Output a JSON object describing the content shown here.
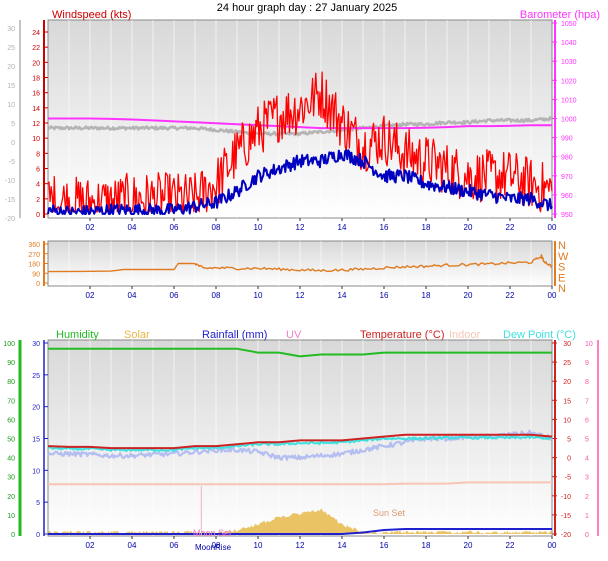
{
  "title": "24 hour graph day : 27 January 2025",
  "x_ticks": [
    "02",
    "04",
    "06",
    "08",
    "10",
    "12",
    "14",
    "16",
    "18",
    "20",
    "22",
    "00"
  ],
  "colors": {
    "wind_avg": "#0000c0",
    "wind_gust": "#ff0000",
    "wind_axis": "#cc0000",
    "barometer": "#ff33ff",
    "grey_trace": "#b4b4b4",
    "direction": "#e07b20",
    "humidity": "#22bb22",
    "solar": "#e6b84a",
    "rainfall": "#2020d0",
    "uv": "#f080c8",
    "temperature": "#cc2222",
    "indoor": "#f5c5b5",
    "dewpoint": "#40e0e0",
    "grey_left_axis": "#b0b0b0",
    "green_axis": "#1a9a1a",
    "pink_axis": "#ff55aa"
  },
  "chart_data": [
    {
      "type": "line",
      "panel": "wind-barometer",
      "left_axis_label": "Windspeed (kts)",
      "right_axis_label": "Barometer (hpa)",
      "left_ticks_wind": [
        "24",
        "22",
        "20",
        "18",
        "16",
        "14",
        "12",
        "10",
        "8",
        "6",
        "4",
        "2",
        "0"
      ],
      "left_ticks_grey": [
        "30",
        "25",
        "20",
        "15",
        "10",
        "5",
        "0",
        "-5",
        "-10",
        "-15",
        "-20"
      ],
      "right_ticks": [
        "1050",
        "1040",
        "1030",
        "1020",
        "1010",
        "1000",
        "990",
        "980",
        "970",
        "960",
        "950"
      ],
      "ylim_wind": [
        0,
        25
      ],
      "ylim_baro": [
        945,
        1050
      ],
      "x": [
        0,
        1,
        2,
        3,
        4,
        5,
        6,
        7,
        8,
        9,
        10,
        11,
        12,
        13,
        14,
        15,
        16,
        17,
        18,
        19,
        20,
        21,
        22,
        23,
        24
      ],
      "series": [
        {
          "name": "Windspeed gust",
          "values": [
            2,
            1.5,
            1.5,
            1.5,
            2,
            2,
            2,
            2,
            4,
            8,
            11,
            13,
            14,
            16,
            12,
            9,
            10,
            8,
            7,
            6,
            5,
            5,
            5,
            4,
            3
          ]
        },
        {
          "name": "Windspeed",
          "values": [
            0.5,
            0.2,
            0.3,
            0.5,
            0.5,
            0.5,
            0.5,
            1,
            1.5,
            3,
            5,
            6,
            7,
            7,
            8,
            7,
            5,
            5,
            4,
            3.5,
            3,
            2.5,
            2,
            2,
            1
          ]
        },
        {
          "name": "Barometer",
          "values": [
            1000,
            1000,
            1000,
            999.8,
            999.5,
            999,
            998.5,
            998,
            997.5,
            997,
            996.5,
            996,
            995.5,
            995,
            995,
            995,
            995,
            995,
            995.2,
            995.5,
            996,
            996,
            996.2,
            996.5,
            996.5
          ]
        },
        {
          "name": "Grey trace",
          "values": [
            995,
            995,
            995,
            995,
            995,
            995,
            995,
            995,
            994,
            993,
            992,
            992,
            992,
            993,
            994,
            995,
            996,
            997,
            997,
            998,
            998,
            999,
            999,
            999,
            1000
          ]
        }
      ]
    },
    {
      "type": "line",
      "panel": "wind-direction",
      "left_ticks": [
        "360",
        "270",
        "180",
        "90",
        "0"
      ],
      "right_ticks": [
        "N",
        "W",
        "S",
        "E",
        "N"
      ],
      "ylim": [
        0,
        360
      ],
      "x": [
        0,
        3,
        3.6,
        5,
        6,
        6.2,
        7,
        7.4,
        8,
        9,
        10,
        11,
        12,
        13,
        14,
        15,
        16,
        17,
        18,
        19,
        20,
        21,
        22,
        23,
        23.5,
        23.6,
        24
      ],
      "series": [
        {
          "name": "Wind direction",
          "values": [
            105,
            110,
            125,
            125,
            125,
            180,
            180,
            135,
            140,
            135,
            135,
            128,
            120,
            115,
            120,
            128,
            140,
            150,
            155,
            165,
            170,
            175,
            185,
            190,
            250,
            205,
            150
          ]
        }
      ]
    },
    {
      "type": "line",
      "panel": "humidity-temperature",
      "legend": [
        "Humidity",
        "Solar",
        "Rainfall (mm)",
        "UV",
        "Temperature (°C)",
        "Indoor",
        "Dew Point (°C)"
      ],
      "left_ticks_humidity": [
        "100",
        "90",
        "80",
        "70",
        "60",
        "50",
        "40",
        "30",
        "20",
        "10",
        "0"
      ],
      "left_ticks_rain": [
        "30",
        "25",
        "20",
        "15",
        "10",
        "5",
        "0"
      ],
      "right_ticks_temp": [
        "30",
        "25",
        "20",
        "15",
        "10",
        "5",
        "0",
        "-5",
        "-10",
        "-15",
        "-20"
      ],
      "right_ticks_uv": [
        "10",
        "9",
        "8",
        "7",
        "6",
        "5",
        "4",
        "3",
        "2",
        "1",
        "0"
      ],
      "annotations": [
        "Sun Set",
        "Moon Set",
        "MoonRise"
      ],
      "ylim_humidity": [
        0,
        100
      ],
      "ylim_temp": [
        -20,
        30
      ],
      "x": [
        0,
        1,
        2,
        3,
        4,
        5,
        6,
        7,
        8,
        9,
        10,
        11,
        12,
        13,
        14,
        15,
        16,
        17,
        18,
        19,
        20,
        21,
        22,
        23,
        24
      ],
      "series": [
        {
          "name": "Humidity",
          "values": [
            97,
            97,
            97,
            97,
            97,
            97,
            97,
            97,
            97,
            97,
            95,
            95,
            93,
            94,
            94,
            94,
            95,
            95,
            95,
            95,
            95,
            95,
            95,
            95,
            95
          ]
        },
        {
          "name": "Temperature (°C)",
          "values": [
            3,
            2.8,
            2.8,
            2.5,
            2.5,
            2.5,
            2.5,
            3,
            3,
            3.5,
            4,
            4,
            4.5,
            4.5,
            4.5,
            5,
            5.5,
            6,
            6,
            6,
            6,
            6,
            6,
            6,
            5.5
          ]
        },
        {
          "name": "Dew Point (°C)",
          "values": [
            2.5,
            2.3,
            2.3,
            2,
            2,
            2,
            2,
            2.5,
            2.5,
            3,
            3.5,
            3.5,
            3.8,
            3.8,
            4,
            4.5,
            5,
            5,
            5,
            5.2,
            5.2,
            5.2,
            5.2,
            5.3,
            5
          ]
        },
        {
          "name": "Indoor",
          "values": [
            -7,
            -7,
            -7,
            -7,
            -7,
            -7,
            -7,
            -7,
            -7,
            -7,
            -7,
            -7,
            -7,
            -7,
            -7,
            -7,
            -7,
            -6.8,
            -6.8,
            -6.8,
            -6.5,
            -6.5,
            -6.5,
            -6.5,
            -6.5
          ]
        },
        {
          "name": "Grey trace",
          "values": [
            1,
            1,
            0.8,
            0.5,
            0.5,
            0.8,
            1,
            1.5,
            2,
            2,
            1.5,
            0,
            0,
            0.5,
            1,
            2,
            3,
            4,
            5,
            5,
            5.5,
            5.5,
            6,
            6.5,
            5
          ]
        },
        {
          "name": "Rainfall (mm)",
          "values": [
            0,
            0,
            0,
            0,
            0,
            0,
            0,
            0,
            0,
            0,
            0,
            0,
            0,
            0,
            0,
            0.3,
            0.8,
            1,
            1,
            1,
            1,
            1,
            1,
            1,
            1
          ]
        },
        {
          "name": "Solar",
          "values": [
            0,
            0,
            0,
            0,
            0,
            0,
            0,
            0,
            0,
            0.5,
            2,
            4,
            5,
            6,
            2,
            0,
            0,
            0,
            0,
            0,
            0,
            0,
            0,
            0,
            0
          ]
        }
      ]
    }
  ]
}
